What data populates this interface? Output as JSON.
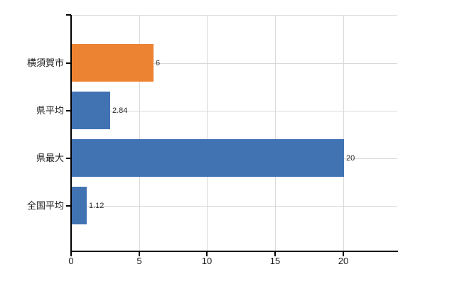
{
  "chart_data": {
    "type": "bar",
    "orientation": "horizontal",
    "title": "",
    "xlabel": "",
    "ylabel": "",
    "categories": [
      "横須賀市",
      "県平均",
      "県最大",
      "全国平均"
    ],
    "values": [
      6,
      2.84,
      20,
      1.12
    ],
    "value_labels": [
      "6",
      "2.84",
      "20",
      "1.12"
    ],
    "bar_colors": [
      "#eb8332",
      "#4173b3",
      "#4173b3",
      "#4173b3"
    ],
    "x_ticks": [
      0,
      5,
      10,
      15,
      20
    ],
    "x_tick_labels": [
      "0",
      "5",
      "10",
      "15",
      "20"
    ],
    "xlim": [
      0,
      24
    ],
    "grid": true,
    "legend": "none"
  },
  "colors": {
    "highlight_orange": "#eb8332",
    "primary_blue": "#4173b3",
    "gridline": "#d9d9d9",
    "axis": "#000000",
    "value_label": "#2b2b2b",
    "tick_label": "#1a1a1a",
    "background": "#ffffff"
  }
}
